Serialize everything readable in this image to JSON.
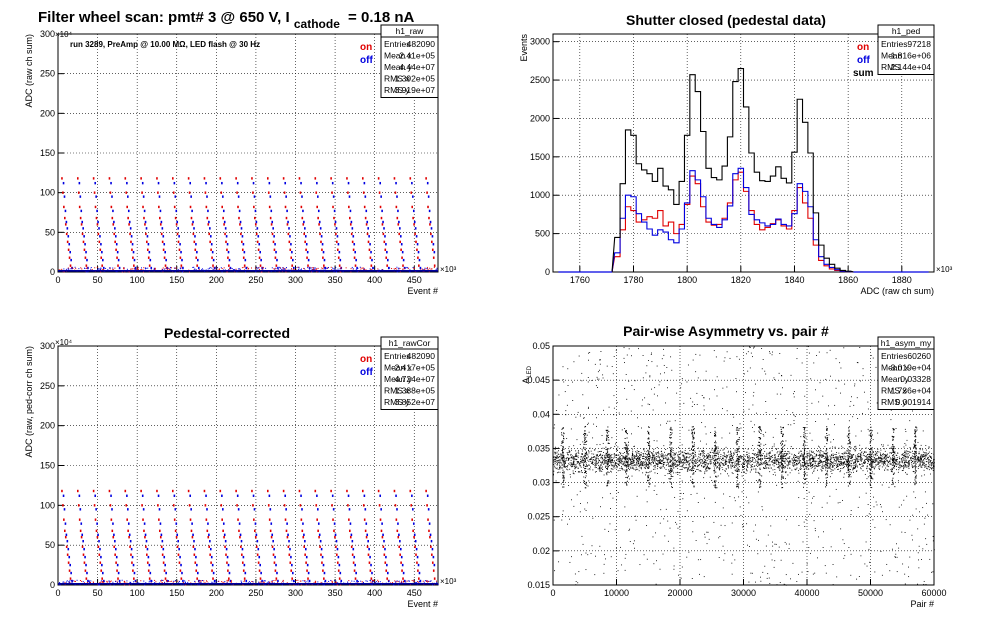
{
  "main_title": {
    "prefix": "Filter wheel scan: pmt#   3 @   650 V, I",
    "subscript": "cathode",
    "suffix": "= 0.18 nA"
  },
  "run_info": "run 3289, PreAmp @ 10.00 MΩ, LED flash @   30 Hz",
  "legend_labels": {
    "on": "on",
    "off": "off",
    "sum": "sum"
  },
  "exponent_labels": {
    "e4": "×10⁴",
    "e3": "×10³"
  },
  "colors": {
    "on": "#e00000",
    "off": "#0000e0",
    "sum": "#000000",
    "grid": "#000000"
  },
  "panels": [
    {
      "id": "raw",
      "stats": {
        "name": "h1_raw",
        "rows": [
          [
            "Entries",
            "482090"
          ],
          [
            "Mean x",
            "2.41e+05"
          ],
          [
            "Mean y",
            "4.44e+07"
          ],
          [
            "RMS x",
            "1.392e+05"
          ],
          [
            "RMS y",
            "3.919e+07"
          ]
        ]
      }
    },
    {
      "id": "ped",
      "title": "Shutter closed (pedestal data)",
      "stats": {
        "name": "h1_ped",
        "rows": [
          [
            "Entries",
            "97218"
          ],
          [
            "Mean",
            "1.816e+06"
          ],
          [
            "RMS",
            "2.144e+04"
          ]
        ]
      }
    },
    {
      "id": "rawcor",
      "title": "Pedestal-corrected",
      "stats": {
        "name": "h1_rawCor",
        "rows": [
          [
            "Entries",
            "482090"
          ],
          [
            "Mean x",
            "2.417e+05"
          ],
          [
            "Mean y",
            "4.724e+07"
          ],
          [
            "RMS x",
            "1.388e+05"
          ],
          [
            "RMS y",
            "3.852e+07"
          ]
        ]
      }
    },
    {
      "id": "asym",
      "title": "Pair-wise Asymmetry vs. pair #",
      "stats": {
        "name": "h1_asym_my",
        "rows": [
          [
            "Entries",
            "60260"
          ],
          [
            "Mean x",
            "3.019e+04"
          ],
          [
            "Mean y",
            "0.03328"
          ],
          [
            "RMS x",
            "1.736e+04"
          ],
          [
            "RMS y",
            "0.001914"
          ]
        ]
      }
    }
  ],
  "chart_data": [
    {
      "type": "scatter",
      "panel": "raw",
      "xlabel": "Event #",
      "ylabel": "ADC (raw ch sum)",
      "xlim": [
        0,
        480
      ],
      "ylim": [
        0,
        300
      ],
      "x_scale": "×10³",
      "y_scale": "×10⁴",
      "xticks": [
        0,
        50,
        100,
        150,
        200,
        250,
        300,
        350,
        400,
        450
      ],
      "yticks": [
        0,
        50,
        100,
        150,
        200,
        250,
        300
      ],
      "series": [
        {
          "name": "on",
          "levels": [
            118,
            100,
            82,
            68,
            60,
            48,
            38,
            28,
            18,
            8
          ]
        },
        {
          "name": "off",
          "levels": [
            112,
            95,
            77,
            63,
            55,
            45,
            35,
            25,
            15,
            5
          ]
        }
      ],
      "step_period": 20,
      "grid": true,
      "legend": "top-right"
    },
    {
      "type": "line",
      "panel": "ped",
      "xlabel": "ADC (raw ch sum)",
      "ylabel": "Events",
      "xlim": [
        1750,
        1892
      ],
      "ylim": [
        0,
        3100
      ],
      "x_scale": "×10³",
      "xticks": [
        1760,
        1780,
        1800,
        1820,
        1840,
        1860,
        1880
      ],
      "yticks": [
        0,
        500,
        1000,
        1500,
        2000,
        2500,
        3000
      ],
      "x": [
        1774,
        1776,
        1778,
        1780,
        1782,
        1784,
        1786,
        1788,
        1790,
        1792,
        1794,
        1796,
        1798,
        1800,
        1802,
        1804,
        1806,
        1808,
        1810,
        1812,
        1814,
        1816,
        1818,
        1820,
        1822,
        1824,
        1826,
        1828,
        1830,
        1832,
        1834,
        1836,
        1838,
        1840,
        1842,
        1844,
        1846,
        1848,
        1850,
        1852,
        1854,
        1856,
        1858,
        1860
      ],
      "series": [
        {
          "name": "on",
          "values": [
            200,
            550,
            850,
            800,
            650,
            680,
            720,
            700,
            800,
            600,
            650,
            500,
            620,
            880,
            1250,
            1150,
            850,
            650,
            610,
            620,
            700,
            900,
            1200,
            1300,
            1050,
            800,
            620,
            550,
            580,
            630,
            680,
            600,
            560,
            800,
            1100,
            900,
            700,
            350,
            150,
            80,
            40,
            20,
            10,
            5
          ]
        },
        {
          "name": "off",
          "values": [
            250,
            700,
            1000,
            980,
            760,
            650,
            560,
            480,
            550,
            520,
            420,
            380,
            560,
            900,
            1320,
            1200,
            980,
            700,
            620,
            580,
            680,
            860,
            1280,
            1350,
            1100,
            750,
            680,
            640,
            600,
            620,
            690,
            620,
            600,
            760,
            1150,
            1050,
            850,
            420,
            200,
            100,
            60,
            30,
            10,
            5
          ]
        },
        {
          "name": "sum",
          "values": [
            450,
            1150,
            1850,
            1780,
            1410,
            1330,
            1280,
            1180,
            1350,
            1120,
            1070,
            880,
            1180,
            1780,
            2570,
            2350,
            1830,
            1350,
            1230,
            1200,
            1380,
            1760,
            2480,
            2650,
            2150,
            1550,
            1300,
            1190,
            1180,
            1250,
            1370,
            1220,
            1160,
            1560,
            2250,
            1950,
            1550,
            770,
            350,
            180,
            100,
            50,
            20,
            10
          ]
        }
      ],
      "grid": true,
      "legend": "top-right"
    },
    {
      "type": "scatter",
      "panel": "rawcor",
      "xlabel": "Event #",
      "ylabel": "ADC (raw, ped-corr ch sum)",
      "xlim": [
        0,
        480
      ],
      "ylim": [
        0,
        300
      ],
      "x_scale": "×10³",
      "y_scale": "×10⁴",
      "xticks": [
        0,
        50,
        100,
        150,
        200,
        250,
        300,
        350,
        400,
        450
      ],
      "yticks": [
        0,
        50,
        100,
        150,
        200,
        250,
        300
      ],
      "series": [
        {
          "name": "on",
          "levels": [
            118,
            100,
            82,
            68,
            60,
            48,
            38,
            28,
            18,
            8
          ]
        },
        {
          "name": "off",
          "levels": [
            112,
            95,
            77,
            63,
            55,
            45,
            35,
            25,
            15,
            5
          ]
        }
      ],
      "step_period": 20,
      "grid": true,
      "legend": "top-right"
    },
    {
      "type": "scatter",
      "panel": "asym",
      "xlabel": "Pair #",
      "ylabel": "A_LED",
      "xlim": [
        0,
        60000
      ],
      "ylim": [
        0.015,
        0.05
      ],
      "xticks": [
        0,
        10000,
        20000,
        30000,
        40000,
        50000,
        60000
      ],
      "yticks": [
        0.015,
        0.02,
        0.025,
        0.03,
        0.035,
        0.04,
        0.045,
        0.05
      ],
      "band_center": 0.0333,
      "band_rms": 0.0008,
      "spike_positions": [
        1500,
        5000,
        8500,
        11500,
        15000,
        18500,
        22000,
        25500,
        29000,
        32500,
        36000,
        39500,
        43000,
        46500,
        50000,
        53500,
        57000
      ],
      "grid": true,
      "legend": "none"
    }
  ]
}
